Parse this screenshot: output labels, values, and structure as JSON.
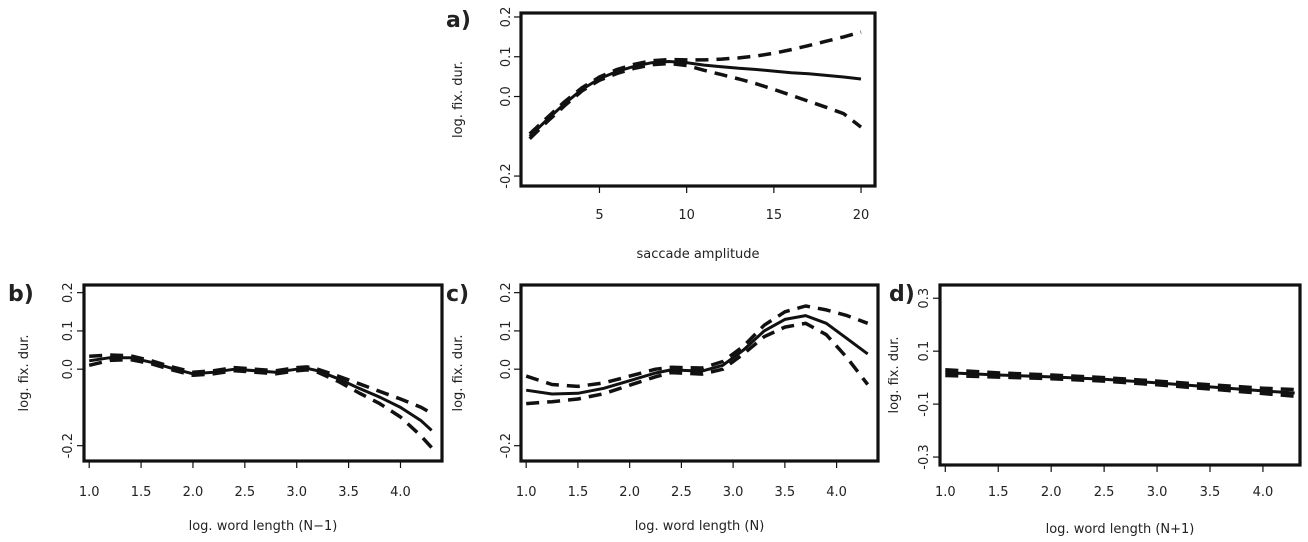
{
  "chart_data": [
    {
      "panel": "a)",
      "type": "line",
      "xlabel": "saccade amplitude",
      "ylabel": "log. fix. dur.",
      "xticks": [
        "5",
        "10",
        "15",
        "20"
      ],
      "yticks": [
        "-0.2",
        "0.0",
        "0.1",
        "0.2"
      ],
      "xlim": [
        0.5,
        20.8
      ],
      "ylim": [
        -0.225,
        0.21
      ],
      "series": [
        {
          "style": "solid",
          "x": [
            1,
            2,
            3,
            4,
            5,
            6,
            7,
            8,
            9,
            10,
            11,
            12,
            13,
            14,
            15,
            16,
            17,
            18,
            19,
            20
          ],
          "y": [
            -0.1,
            -0.058,
            -0.018,
            0.018,
            0.045,
            0.063,
            0.076,
            0.085,
            0.088,
            0.085,
            0.079,
            0.075,
            0.071,
            0.068,
            0.064,
            0.06,
            0.057,
            0.053,
            0.049,
            0.044
          ]
        },
        {
          "style": "dashed",
          "x": [
            1,
            2,
            3,
            4,
            5,
            6,
            7,
            8,
            9,
            10,
            11,
            12,
            13,
            14,
            15,
            16,
            17,
            18,
            19,
            20
          ],
          "y": [
            -0.094,
            -0.053,
            -0.013,
            0.022,
            0.049,
            0.068,
            0.081,
            0.09,
            0.093,
            0.092,
            0.092,
            0.094,
            0.097,
            0.102,
            0.109,
            0.118,
            0.128,
            0.139,
            0.15,
            0.162
          ]
        },
        {
          "style": "dashed",
          "x": [
            1,
            2,
            3,
            4,
            5,
            6,
            7,
            8,
            9,
            10,
            11,
            12,
            13,
            14,
            15,
            16,
            17,
            18,
            19,
            20
          ],
          "y": [
            -0.106,
            -0.063,
            -0.023,
            0.014,
            0.041,
            0.058,
            0.071,
            0.08,
            0.083,
            0.078,
            0.066,
            0.055,
            0.044,
            0.032,
            0.018,
            0.003,
            -0.012,
            -0.027,
            -0.043,
            -0.077
          ]
        }
      ]
    },
    {
      "panel": "b)",
      "type": "line",
      "xlabel": "log. word length (N−1)",
      "ylabel": "log. fix. dur.",
      "xticks": [
        "1.0",
        "1.5",
        "2.0",
        "2.5",
        "3.0",
        "3.5",
        "4.0"
      ],
      "yticks": [
        "-0.2",
        "0.0",
        "0.1",
        "0.2"
      ],
      "xlim": [
        0.95,
        4.4
      ],
      "ylim": [
        -0.24,
        0.22
      ],
      "series": [
        {
          "style": "solid",
          "x": [
            1.0,
            1.2,
            1.4,
            1.6,
            1.8,
            2.0,
            2.2,
            2.4,
            2.6,
            2.8,
            3.0,
            3.1,
            3.2,
            3.4,
            3.6,
            3.8,
            4.0,
            4.2,
            4.3
          ],
          "y": [
            0.022,
            0.03,
            0.03,
            0.018,
            0.002,
            -0.012,
            -0.008,
            0.0,
            -0.004,
            -0.008,
            0.0,
            0.002,
            -0.004,
            -0.025,
            -0.05,
            -0.073,
            -0.1,
            -0.135,
            -0.16
          ]
        },
        {
          "style": "dashed",
          "x": [
            1.0,
            1.2,
            1.4,
            1.6,
            1.8,
            2.0,
            2.2,
            2.4,
            2.6,
            2.8,
            3.0,
            3.1,
            3.2,
            3.4,
            3.6,
            3.8,
            4.0,
            4.2,
            4.3
          ],
          "y": [
            0.034,
            0.037,
            0.035,
            0.022,
            0.006,
            -0.008,
            -0.004,
            0.004,
            0.0,
            -0.004,
            0.004,
            0.006,
            0.0,
            -0.018,
            -0.038,
            -0.058,
            -0.078,
            -0.1,
            -0.115
          ]
        },
        {
          "style": "dashed",
          "x": [
            1.0,
            1.2,
            1.4,
            1.6,
            1.8,
            2.0,
            2.2,
            2.4,
            2.6,
            2.8,
            3.0,
            3.1,
            3.2,
            3.4,
            3.6,
            3.8,
            4.0,
            4.2,
            4.3
          ],
          "y": [
            0.01,
            0.023,
            0.025,
            0.014,
            -0.002,
            -0.016,
            -0.012,
            -0.004,
            -0.008,
            -0.012,
            -0.004,
            -0.002,
            -0.008,
            -0.032,
            -0.062,
            -0.09,
            -0.125,
            -0.175,
            -0.205
          ]
        }
      ]
    },
    {
      "panel": "c)",
      "type": "line",
      "xlabel": "log. word length (N)",
      "ylabel": "log. fix. dur.",
      "xticks": [
        "1.0",
        "1.5",
        "2.0",
        "2.5",
        "3.0",
        "3.5",
        "4.0"
      ],
      "yticks": [
        "-0.2",
        "0.0",
        "0.1",
        "0.2"
      ],
      "xlim": [
        0.95,
        4.4
      ],
      "ylim": [
        -0.24,
        0.22
      ],
      "series": [
        {
          "style": "solid",
          "x": [
            1.0,
            1.25,
            1.5,
            1.75,
            2.0,
            2.25,
            2.4,
            2.7,
            2.9,
            3.1,
            3.3,
            3.5,
            3.7,
            3.9,
            4.1,
            4.3
          ],
          "y": [
            -0.055,
            -0.065,
            -0.063,
            -0.05,
            -0.03,
            -0.01,
            -0.002,
            -0.005,
            0.01,
            0.05,
            0.1,
            0.13,
            0.14,
            0.12,
            0.08,
            0.04
          ]
        },
        {
          "style": "dashed",
          "x": [
            1.0,
            1.25,
            1.5,
            1.75,
            2.0,
            2.25,
            2.4,
            2.7,
            2.9,
            3.1,
            3.3,
            3.5,
            3.7,
            3.9,
            4.1,
            4.3
          ],
          "y": [
            -0.018,
            -0.04,
            -0.045,
            -0.036,
            -0.018,
            0.0,
            0.005,
            0.003,
            0.02,
            0.06,
            0.115,
            0.15,
            0.165,
            0.155,
            0.14,
            0.12
          ]
        },
        {
          "style": "dashed",
          "x": [
            1.0,
            1.25,
            1.5,
            1.75,
            2.0,
            2.25,
            2.4,
            2.7,
            2.9,
            3.1,
            3.3,
            3.5,
            3.7,
            3.9,
            4.1,
            4.3
          ],
          "y": [
            -0.09,
            -0.085,
            -0.078,
            -0.064,
            -0.042,
            -0.02,
            -0.009,
            -0.013,
            0.0,
            0.04,
            0.085,
            0.11,
            0.12,
            0.09,
            0.03,
            -0.04
          ]
        }
      ]
    },
    {
      "panel": "d)",
      "type": "line",
      "xlabel": "log. word length (N+1)",
      "ylabel": "log. fix. dur.",
      "xticks": [
        "1.0",
        "1.5",
        "2.0",
        "2.5",
        "3.0",
        "3.5",
        "4.0"
      ],
      "yticks": [
        "-0.3",
        "-0.1",
        "0.1",
        "0.3"
      ],
      "xlim": [
        0.95,
        4.35
      ],
      "ylim": [
        -0.33,
        0.35
      ],
      "series": [
        {
          "style": "solid",
          "x": [
            1.0,
            1.5,
            2.0,
            2.5,
            3.0,
            3.5,
            4.0,
            4.3
          ],
          "y": [
            0.019,
            0.01,
            0.003,
            -0.006,
            -0.02,
            -0.035,
            -0.05,
            -0.058
          ]
        },
        {
          "style": "dashed",
          "x": [
            1.0,
            1.5,
            2.0,
            2.5,
            3.0,
            3.5,
            4.0,
            4.3
          ],
          "y": [
            0.03,
            0.018,
            0.01,
            0.0,
            -0.013,
            -0.027,
            -0.04,
            -0.045
          ]
        },
        {
          "style": "dashed",
          "x": [
            1.0,
            1.5,
            2.0,
            2.5,
            3.0,
            3.5,
            4.0,
            4.3
          ],
          "y": [
            0.008,
            0.002,
            -0.004,
            -0.013,
            -0.027,
            -0.043,
            -0.06,
            -0.07
          ]
        }
      ]
    }
  ]
}
